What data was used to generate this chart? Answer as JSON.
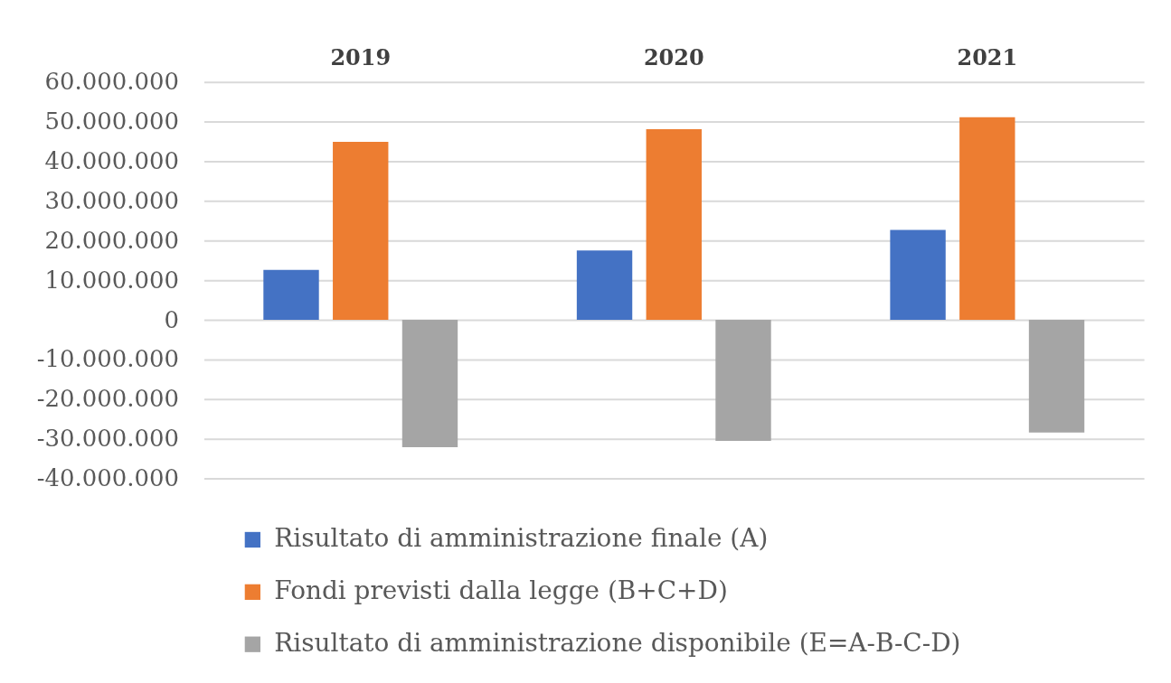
{
  "chart_data": {
    "type": "bar",
    "categories": [
      "2019",
      "2020",
      "2021"
    ],
    "series": [
      {
        "name": "Risultato di amministrazione finale (A)",
        "color": "#4472c4",
        "values": [
          12600000,
          17500000,
          22700000
        ]
      },
      {
        "name": "Fondi previsti dalla legge (B+C+D)",
        "color": "#ed7d31",
        "values": [
          44900000,
          48100000,
          51100000
        ]
      },
      {
        "name": "Risultato di amministrazione disponibile (E=A-B-C-D)",
        "color": "#a5a5a5",
        "values": [
          -32100000,
          -30500000,
          -28400000
        ]
      }
    ],
    "ylim": [
      -40000000,
      60000000
    ],
    "yticks": [
      {
        "value": -40000000,
        "label": "-40.000.000"
      },
      {
        "value": -30000000,
        "label": "-30.000.000"
      },
      {
        "value": -20000000,
        "label": "-20.000.000"
      },
      {
        "value": -10000000,
        "label": "-10.000.000"
      },
      0,
      {
        "value": 10000000,
        "label": "10.000.000"
      },
      {
        "value": 20000000,
        "label": "20.000.000"
      },
      {
        "value": 30000000,
        "label": "30.000.000"
      },
      {
        "value": 40000000,
        "label": "40.000.000"
      },
      {
        "value": 50000000,
        "label": "50.000.000"
      },
      {
        "value": 60000000,
        "label": "60.000.000"
      }
    ],
    "grid": "y",
    "legend": "bottom"
  }
}
